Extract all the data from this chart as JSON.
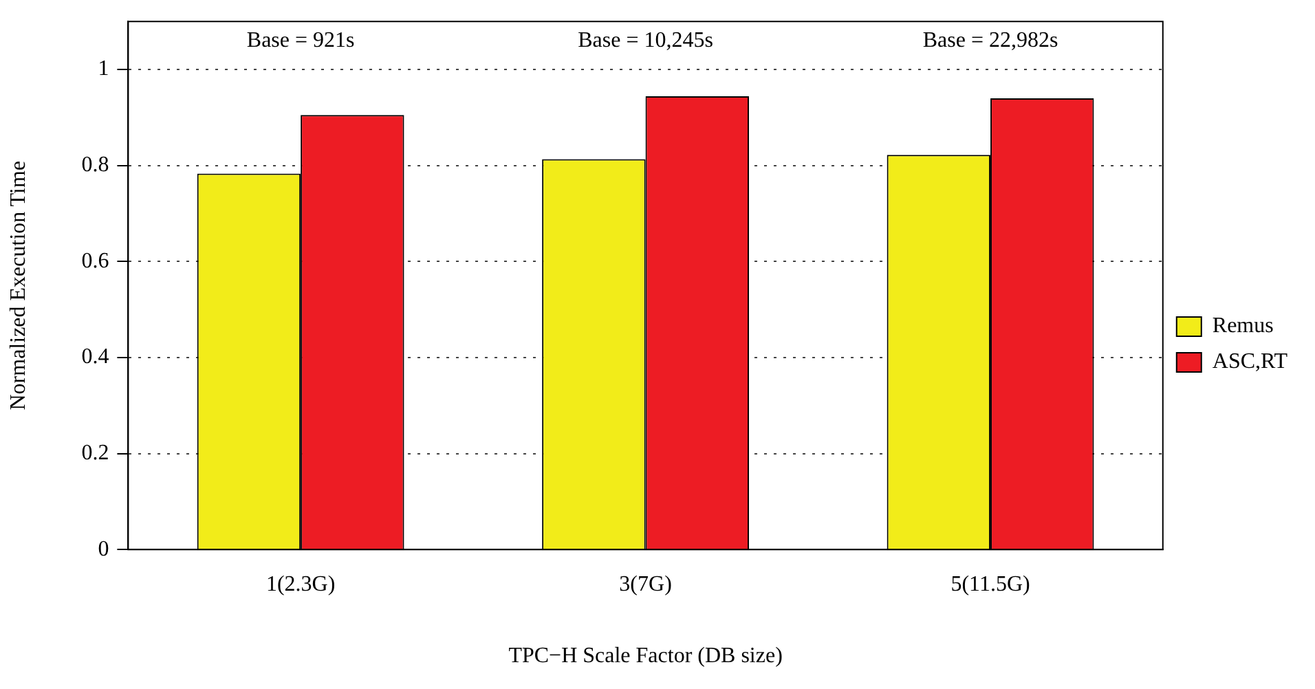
{
  "chart_data": {
    "type": "bar",
    "xlabel": "TPC−H Scale Factor (DB size)",
    "ylabel": "Normalized Execution Time",
    "categories": [
      "1(2.3G)",
      "3(7G)",
      "5(11.5G)"
    ],
    "series": [
      {
        "name": "Remus",
        "color": "#f2ec19",
        "values": [
          0.783,
          0.813,
          0.822
        ]
      },
      {
        "name": "ASC,RT",
        "color": "#ed1c24",
        "values": [
          0.905,
          0.944,
          0.94
        ]
      }
    ],
    "ylim": [
      0,
      1.1
    ],
    "yticks": [
      0,
      0.2,
      0.4,
      0.6,
      0.8,
      {
        "value": 1,
        "label": "1"
      }
    ],
    "grid": "y",
    "legend": "right",
    "annotations": [
      "Base = 921s",
      "Base = 10,245s",
      "Base = 22,982s"
    ]
  }
}
